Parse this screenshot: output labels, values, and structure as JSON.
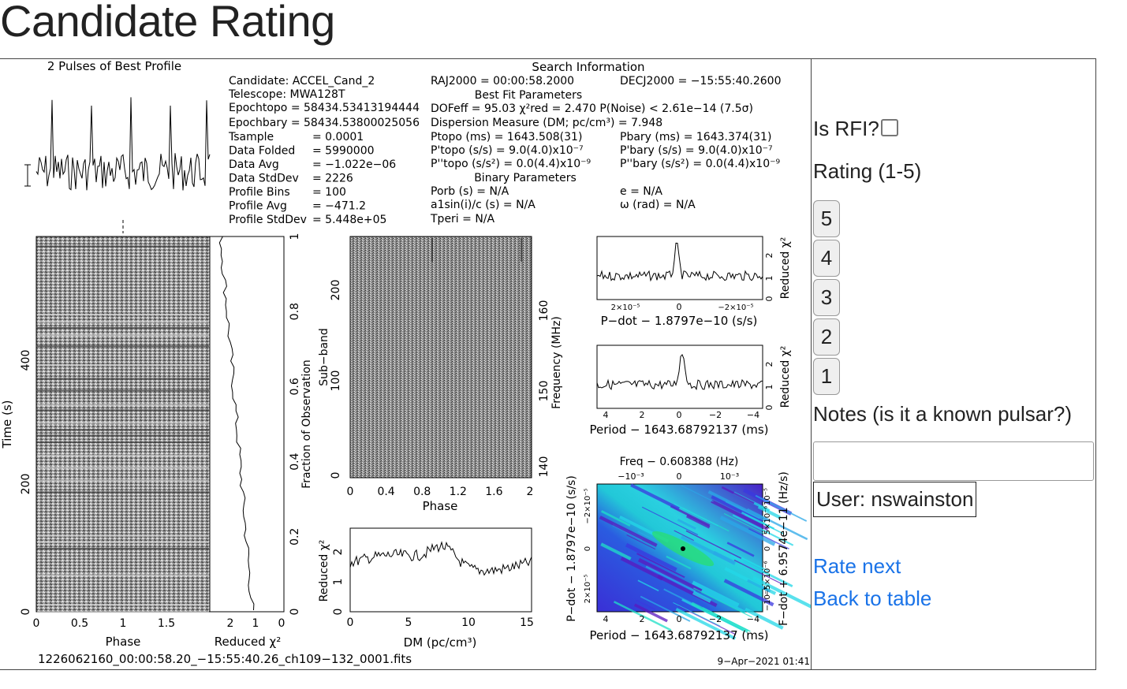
{
  "page": {
    "title": "Candidate Rating"
  },
  "plot": {
    "profile_title": "2 Pulses of Best Profile",
    "search_title": "Search Information",
    "candidate": "Candidate:  ACCEL_Cand_2",
    "telescope": "Telescope:  MWA128T",
    "epoch_topo": "Epochtopo = 58434.53413194444",
    "epoch_bary": "Epochbary = 58434.53800025056",
    "stats_labels": [
      "Tsample",
      "Data Folded",
      "Data Avg",
      "Data StdDev",
      "Profile Bins",
      "Profile Avg",
      "Profile StdDev"
    ],
    "stats_values": [
      "0.0001",
      "5990000",
      "−1.022e−06",
      "2226",
      "100",
      "−471.2",
      "5.448e+05"
    ],
    "ra": "RAJ2000 = 00:00:58.2000",
    "dec": "DECJ2000 = −15:55:40.2600",
    "best_fit_title": "Best Fit Parameters",
    "dof_line": "DOFeff = 95.03   χ²red = 2.470   P(Noise) < 2.61e−14   (7.5σ)",
    "dm_line": "Dispersion Measure (DM; pc/cm³) = 7.948",
    "ptopo": "Ptopo (ms) =   1643.508(31)",
    "pdtopo": "P'topo (s/s) =   9.0(4.0)x10⁻⁷",
    "pddtopo": "P''topo (s/s²) = 0.0(4.4)x10⁻⁹",
    "pbary": "Pbary (ms) =   1643.374(31)",
    "pdbary": "P'bary (s/s) =   9.0(4.0)x10⁻⁷",
    "pddbary": "P''bary (s/s²) = 0.0(4.4)x10⁻⁹",
    "binary_title": "Binary Parameters",
    "porb": "Porb (s) = N/A",
    "asini": "a1sin(i)/c (s) = N/A",
    "tperi": "Tperi = N/A",
    "ecc": "e = N/A",
    "omega": "ω (rad) = N/A",
    "time_label": "Time (s)",
    "phase_label": "Phase",
    "redchi_label": "Reduced χ²",
    "fraction_label": "Fraction of Observation",
    "subband_label": "Sub−band",
    "freq_label": "Frequency (MHz)",
    "dm_axis_label": "DM (pc/cm³)",
    "pdot_label": "P−dot − 1.8797e−10 (s/s)",
    "period_label": "Period − 1643.68792137 (ms)",
    "freq_top_label": "Freq − 0.608388 (Hz)",
    "fdot_label": "F−dot + 6.9574e−11 (Hz/s)",
    "filename": "1226062160_00:00:58.20_−15:55:40.26_ch109−132_0001.fits",
    "date": "9−Apr−2021 01:41",
    "time_ticks": [
      "0",
      "200",
      "400"
    ],
    "phase_ticks": [
      "0",
      "0.5",
      "1",
      "1.5"
    ],
    "redchi_ticks": [
      "2",
      "1",
      "0"
    ],
    "fraction_ticks": [
      "0",
      "0.2",
      "0.4",
      "0.6",
      "0.8",
      "1"
    ],
    "subband_ticks": [
      "0",
      "100",
      "200"
    ],
    "phase2_ticks": [
      "0",
      "0.4",
      "0.8",
      "1.2",
      "1.6",
      "2"
    ],
    "freq_ticks": [
      "140",
      "150",
      "160"
    ],
    "dm_ticks": [
      "0",
      "5",
      "10",
      "15"
    ],
    "dm_chi_ticks": [
      "0",
      "1",
      "2"
    ],
    "pd_ticks": [
      "2×10⁻⁵",
      "0",
      "−2×10⁻⁵"
    ],
    "small_chi_ticks": [
      "0",
      "1",
      "2"
    ],
    "period_ticks": [
      "4",
      "2",
      "0",
      "−2",
      "−4"
    ],
    "freq_top_ticks": [
      "−10⁻³",
      "0",
      "10⁻³"
    ],
    "pdot_side_ticks": [
      "2×10⁻⁵",
      "0",
      "−2×10⁻⁵"
    ],
    "fdot_side_ticks": [
      "−10⁻⁵",
      "−5×10⁻⁶",
      "0",
      "5×10⁻⁶",
      "10⁻⁵"
    ]
  },
  "sidebar": {
    "rfi_label": "Is RFI?",
    "rating_label": "Rating (1-5)",
    "rating_buttons": [
      "5",
      "4",
      "3",
      "2",
      "1"
    ],
    "notes_label": "Notes (is it a known pulsar?)",
    "notes_value": "",
    "user_label": "User: nswainston",
    "rate_next": "Rate next",
    "back_to_table": "Back to table"
  },
  "colors": {
    "link": "#1a73e8",
    "border": "#444444"
  }
}
